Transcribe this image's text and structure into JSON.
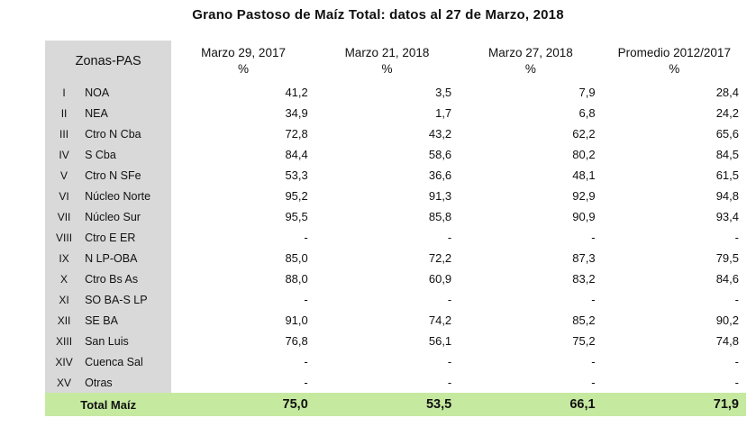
{
  "title": "Grano Pastoso de Maíz Total: datos al 27 de Marzo, 2018",
  "columns": {
    "zonas": "Zonas-PAS",
    "c1": {
      "label": "Marzo 29, 2017",
      "unit": "%"
    },
    "c2": {
      "label": "Marzo 21, 2018",
      "unit": "%"
    },
    "c3": {
      "label": "Marzo 27, 2018",
      "unit": "%"
    },
    "c4": {
      "label": "Promedio 2012/2017",
      "unit": "%"
    }
  },
  "rows": [
    {
      "num": "I",
      "zone": "NOA",
      "v1": "41,2",
      "v2": "3,5",
      "v3": "7,9",
      "v4": "28,4"
    },
    {
      "num": "II",
      "zone": "NEA",
      "v1": "34,9",
      "v2": "1,7",
      "v3": "6,8",
      "v4": "24,2"
    },
    {
      "num": "III",
      "zone": "Ctro N Cba",
      "v1": "72,8",
      "v2": "43,2",
      "v3": "62,2",
      "v4": "65,6"
    },
    {
      "num": "IV",
      "zone": "S Cba",
      "v1": "84,4",
      "v2": "58,6",
      "v3": "80,2",
      "v4": "84,5"
    },
    {
      "num": "V",
      "zone": "Ctro N SFe",
      "v1": "53,3",
      "v2": "36,6",
      "v3": "48,1",
      "v4": "61,5"
    },
    {
      "num": "VI",
      "zone": "Núcleo Norte",
      "v1": "95,2",
      "v2": "91,3",
      "v3": "92,9",
      "v4": "94,8"
    },
    {
      "num": "VII",
      "zone": "Núcleo Sur",
      "v1": "95,5",
      "v2": "85,8",
      "v3": "90,9",
      "v4": "93,4"
    },
    {
      "num": "VIII",
      "zone": "Ctro E ER",
      "v1": "-",
      "v2": "-",
      "v3": "-",
      "v4": "-"
    },
    {
      "num": "IX",
      "zone": "N LP-OBA",
      "v1": "85,0",
      "v2": "72,2",
      "v3": "87,3",
      "v4": "79,5"
    },
    {
      "num": "X",
      "zone": "Ctro Bs As",
      "v1": "88,0",
      "v2": "60,9",
      "v3": "83,2",
      "v4": "84,6"
    },
    {
      "num": "XI",
      "zone": "SO BA-S LP",
      "v1": "-",
      "v2": "-",
      "v3": "-",
      "v4": "-"
    },
    {
      "num": "XII",
      "zone": "SE BA",
      "v1": "91,0",
      "v2": "74,2",
      "v3": "85,2",
      "v4": "90,2"
    },
    {
      "num": "XIII",
      "zone": "San Luis",
      "v1": "76,8",
      "v2": "56,1",
      "v3": "75,2",
      "v4": "74,8"
    },
    {
      "num": "XIV",
      "zone": "Cuenca Sal",
      "v1": "-",
      "v2": "-",
      "v3": "-",
      "v4": "-"
    },
    {
      "num": "XV",
      "zone": "Otras",
      "v1": "-",
      "v2": "-",
      "v3": "-",
      "v4": "-"
    }
  ],
  "total": {
    "label": "Total Maíz",
    "v1": "75,0",
    "v2": "53,5",
    "v3": "66,1",
    "v4": "71,9"
  }
}
